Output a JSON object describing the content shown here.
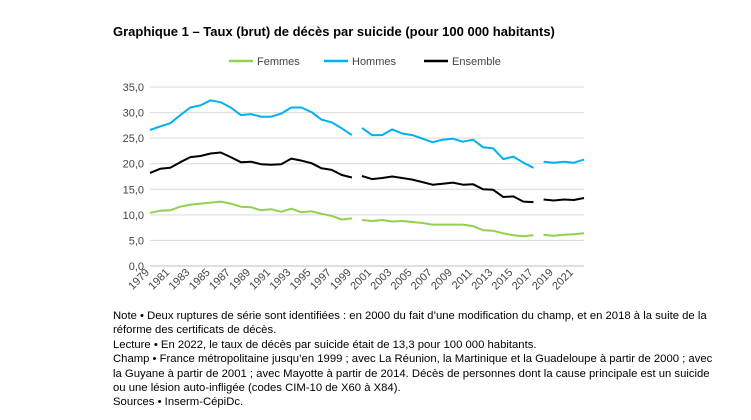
{
  "title": "Graphique 1 – Taux (brut) de décès par suicide (pour 100 000 habitants)",
  "chart_data": {
    "type": "line",
    "ylim": [
      0,
      35
    ],
    "yticks": [
      "0,0",
      "5,0",
      "10,0",
      "15,0",
      "20,0",
      "25,0",
      "30,0",
      "35,0"
    ],
    "xtick_labels": [
      "1979",
      "1981",
      "1983",
      "1985",
      "1987",
      "1989",
      "1991",
      "1993",
      "1995",
      "1997",
      "1999",
      "2001",
      "2003",
      "2005",
      "2007",
      "2009",
      "2011",
      "2013",
      "2015",
      "2017",
      "2019",
      "2021"
    ],
    "grid": true,
    "legend_position": "top",
    "x": [
      1979,
      1980,
      1981,
      1982,
      1983,
      1984,
      1985,
      1986,
      1987,
      1988,
      1989,
      1990,
      1991,
      1992,
      1993,
      1994,
      1995,
      1996,
      1997,
      1998,
      1999,
      2000,
      2001,
      2002,
      2003,
      2004,
      2005,
      2006,
      2007,
      2008,
      2009,
      2010,
      2011,
      2012,
      2013,
      2014,
      2015,
      2016,
      2017,
      2018,
      2019,
      2020,
      2021,
      2022
    ],
    "segments": [
      [
        1979,
        1999
      ],
      [
        2000,
        2017
      ],
      [
        2018,
        2022
      ]
    ],
    "series": [
      {
        "name": "Femmes",
        "color": "#92d050",
        "values": [
          10.4,
          10.8,
          10.9,
          11.6,
          12.0,
          12.2,
          12.4,
          12.6,
          12.2,
          11.6,
          11.5,
          10.9,
          11.1,
          10.6,
          11.2,
          10.5,
          10.7,
          10.2,
          9.8,
          9.1,
          9.3,
          9.0,
          8.8,
          9.0,
          8.7,
          8.8,
          8.6,
          8.4,
          8.1,
          8.1,
          8.1,
          8.1,
          7.8,
          7.0,
          6.9,
          6.4,
          6.0,
          5.8,
          6.0,
          6.1,
          5.9,
          6.1,
          6.2,
          6.4
        ]
      },
      {
        "name": "Hommes",
        "color": "#00b0f0",
        "values": [
          26.6,
          27.3,
          27.9,
          29.5,
          31.0,
          31.4,
          32.4,
          32.0,
          31.0,
          29.5,
          29.7,
          29.2,
          29.2,
          29.8,
          31.0,
          31.0,
          30.1,
          28.6,
          28.1,
          26.9,
          25.6,
          27.0,
          25.6,
          25.6,
          26.7,
          25.9,
          25.6,
          24.9,
          24.2,
          24.7,
          24.9,
          24.3,
          24.7,
          23.2,
          23.0,
          20.9,
          21.4,
          20.2,
          19.2,
          20.4,
          20.2,
          20.4,
          20.2,
          20.8
        ]
      },
      {
        "name": "Ensemble",
        "color": "#000000",
        "values": [
          18.2,
          19.0,
          19.2,
          20.3,
          21.3,
          21.5,
          22.0,
          22.2,
          21.3,
          20.3,
          20.4,
          19.9,
          19.8,
          19.9,
          21.0,
          20.6,
          20.1,
          19.1,
          18.8,
          17.8,
          17.3,
          17.6,
          17.0,
          17.2,
          17.5,
          17.2,
          16.9,
          16.4,
          15.9,
          16.1,
          16.3,
          15.9,
          16.0,
          15.0,
          14.9,
          13.5,
          13.6,
          12.6,
          12.5,
          13.0,
          12.8,
          13.0,
          12.9,
          13.3
        ]
      }
    ]
  },
  "notes": [
    "Note • Deux ruptures de série sont identifiées : en 2000 du fait d’une modification du champ, et en 2018 à la suite de la réforme des certificats de décès.",
    "Lecture • En 2022, le taux de décès par suicide était de 13,3 pour 100 000 habitants.",
    "Champ • France métropolitaine jusqu’en 1999 ; avec La Réunion, la Martinique et la Guadeloupe à partir de 2000 ; avec la Guyane à partir de 2001 ; avec Mayotte à partir de 2014. Décès de personnes dont la cause principale est un suicide ou une lésion auto-infligée (codes CIM-10 de X60 à X84).",
    "Sources • Inserm-CépiDc."
  ]
}
